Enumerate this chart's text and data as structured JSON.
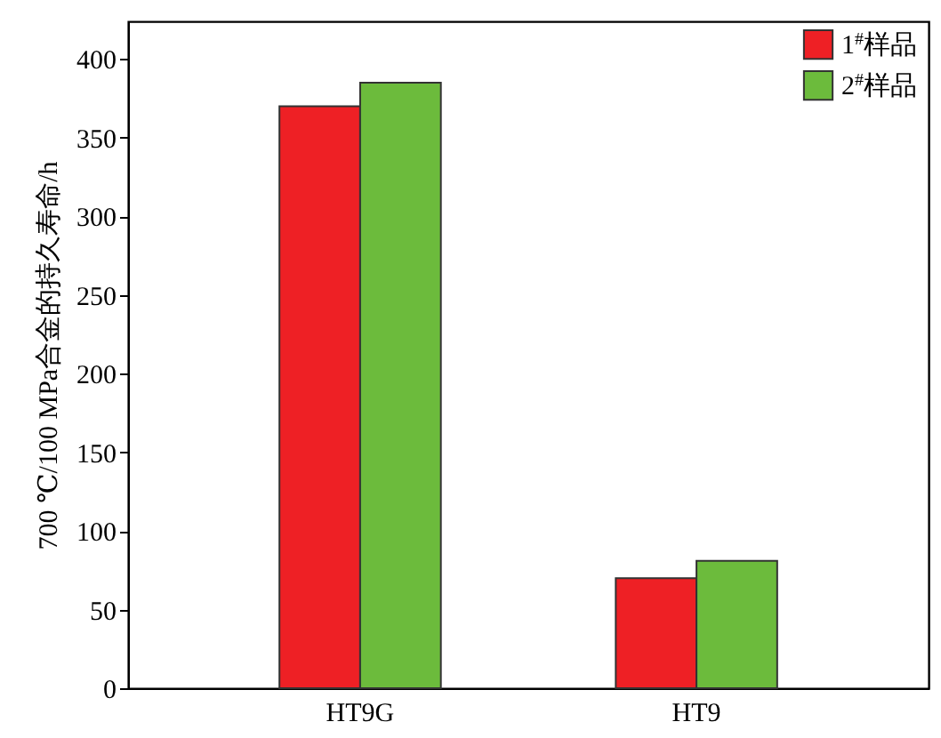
{
  "chart_data": {
    "type": "bar",
    "ylabel": "700 ℃/100 MPa合金的持久寿命/h",
    "categories": [
      "HT9G",
      "HT9"
    ],
    "series": [
      {
        "name": "1$^{#}$样品",
        "color": "#ee2025",
        "values": [
          370,
          70
        ]
      },
      {
        "name": "2$^{#}$样品",
        "color": "#6cbb3c",
        "values": [
          385,
          81
        ]
      }
    ],
    "ylim": [
      0,
      424
    ],
    "yticks": [
      0,
      50,
      100,
      150,
      200,
      250,
      300,
      350,
      400
    ],
    "legend": "top right",
    "grid": false
  }
}
